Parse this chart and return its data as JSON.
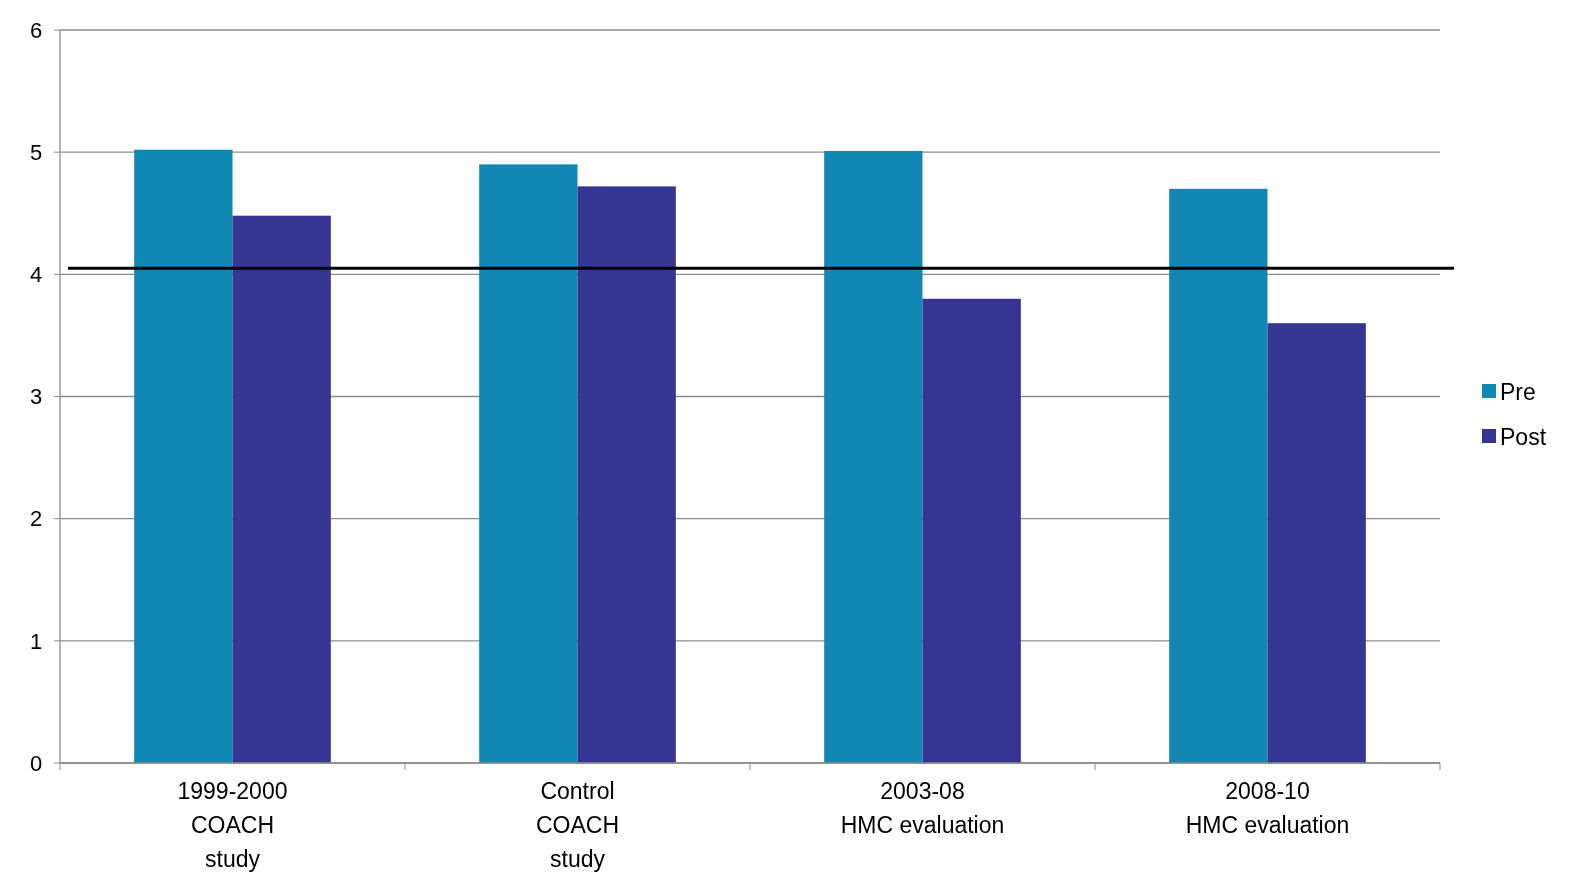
{
  "chart_data": {
    "type": "bar",
    "categories": [
      "1999-2000\nCOACH\nstudy",
      "Control\nCOACH\nstudy",
      "2003-08\nHMC evaluation",
      "2008-10\nHMC evaluation"
    ],
    "series": [
      {
        "name": "Pre",
        "color": "#1188b4",
        "values": [
          5.02,
          4.9,
          5.01,
          4.7
        ]
      },
      {
        "name": "Post",
        "color": "#353594",
        "values": [
          4.48,
          4.72,
          3.8,
          3.6
        ]
      }
    ],
    "ylim": [
      0,
      6
    ],
    "yticks": [
      0,
      1,
      2,
      3,
      4,
      5,
      6
    ],
    "grid": "y",
    "legend": "right",
    "ref_lines": [
      {
        "axis": "y",
        "value": 4.05,
        "color": "#000000"
      }
    ]
  }
}
